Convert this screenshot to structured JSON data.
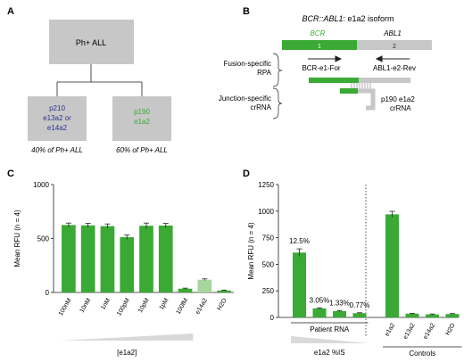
{
  "panels": {
    "a": {
      "letter": "A",
      "root": "Ph+ ALL",
      "left_box": [
        "p210",
        "e13a2 or",
        "e14a2"
      ],
      "right_box": [
        "p190",
        "e1a2"
      ],
      "left_caption": "40% of Ph+ ALL",
      "right_caption": "60% of Ph+ ALL"
    },
    "b": {
      "letter": "B",
      "title_gene": "BCR::ABL1",
      "title_rest": ": e1a2 isoform",
      "bcr_label": "BCR",
      "abl1_label": "ABL1",
      "exon1": "1",
      "exon2": "2",
      "primer_fwd": "BCR-e1-For",
      "primer_rev": "ABL1-e2-Rev",
      "rpa_label": [
        "Fusion-specific",
        "RPA"
      ],
      "crrna_label": [
        "Junction-specific",
        "crRNA"
      ],
      "crrna_name": [
        "p190 e1a2",
        "crRNA"
      ]
    },
    "c": {
      "letter": "C"
    },
    "d": {
      "letter": "D",
      "group_patient": "Patient RNA",
      "group_is": "e1a2 %IS",
      "group_controls": "Controls"
    }
  },
  "colors": {
    "green": "#3aaa35",
    "light_green": "#a7d79e",
    "gray": "#c7c7c7",
    "blue_text": "#2e3192",
    "green_text": "#3aaa35"
  },
  "chart_data": [
    {
      "type": "bar",
      "panel": "C",
      "categories": [
        "100nM",
        "10nM",
        "1nM",
        "100pM",
        "10pM",
        "1pM",
        "100fM",
        "e14a2",
        "H2O"
      ],
      "values": [
        625,
        622,
        615,
        512,
        618,
        620,
        35,
        118,
        18
      ],
      "errors": [
        18,
        18,
        20,
        20,
        25,
        20,
        5,
        8,
        4
      ],
      "bar_colors": [
        "#3aaa35",
        "#3aaa35",
        "#3aaa35",
        "#3aaa35",
        "#3aaa35",
        "#3aaa35",
        "#3aaa35",
        "#a7d79e",
        "#3aaa35"
      ],
      "ylabel": "Mean RFU (n = 4)",
      "xlabel": "[e1a2]",
      "ylim": [
        0,
        1000
      ],
      "yticks": [
        0,
        500,
        1000
      ]
    },
    {
      "type": "bar",
      "panel": "D",
      "categories": [
        "",
        "",
        "",
        "",
        "e1a2",
        "e13a2",
        "e14a2",
        "H2O"
      ],
      "values": [
        610,
        85,
        60,
        40,
        970,
        35,
        28,
        32
      ],
      "errors": [
        35,
        5,
        5,
        4,
        28,
        4,
        4,
        4
      ],
      "annotations": [
        "12.5%",
        "3.05%",
        "1.33%",
        "0.77%",
        "",
        "",
        "",
        ""
      ],
      "ylabel": "Mean RFU (n = 4)",
      "ylim": [
        0,
        1250
      ],
      "yticks": [
        0,
        250,
        500,
        750,
        1000,
        1250
      ]
    }
  ]
}
